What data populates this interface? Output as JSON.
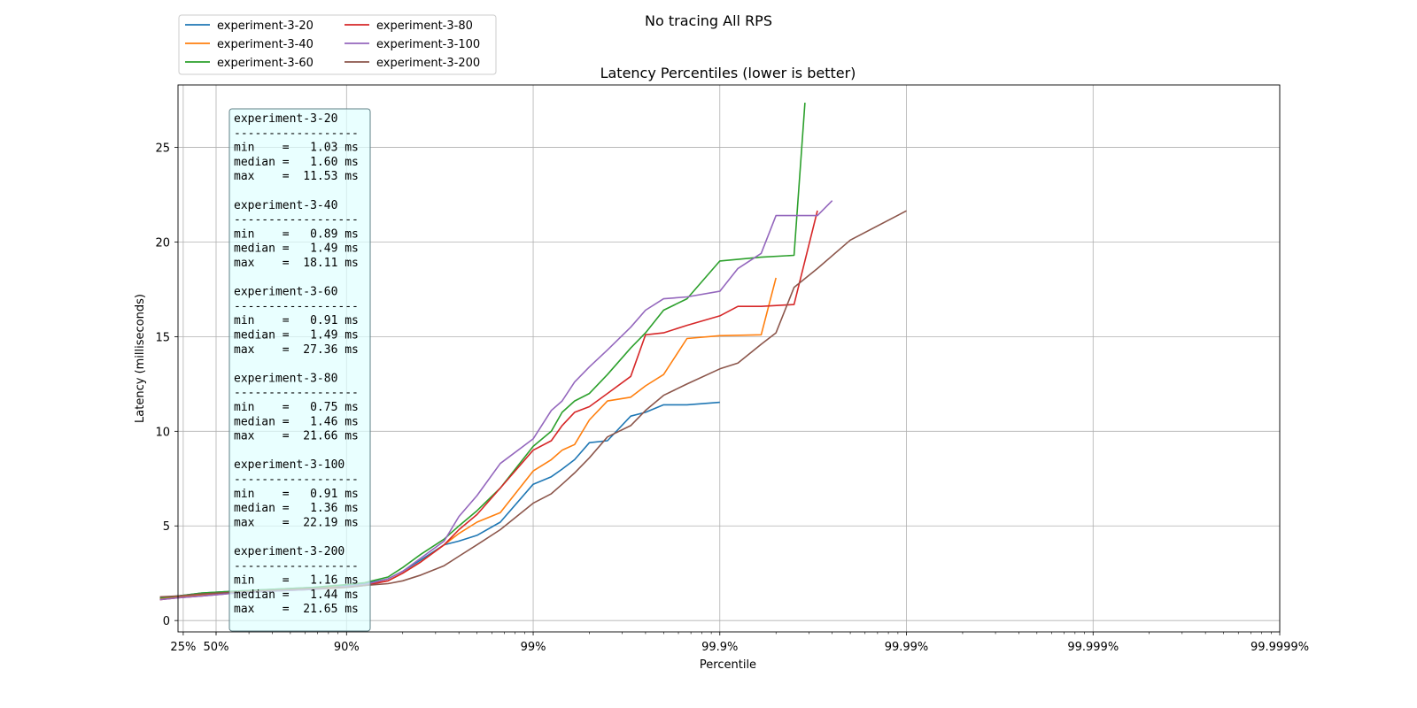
{
  "chart_data": {
    "type": "line",
    "suptitle": "No tracing All RPS",
    "title": "Latency Percentiles (lower is better)",
    "xlabel": "Percentile",
    "ylabel": "Latency (milliseconds)",
    "x_scale": "log of 1/(1 - percentile)",
    "xlim_percentile": [
      0,
      99.9999
    ],
    "ylim": [
      -0.6,
      28.3
    ],
    "x_ticks": [
      {
        "label": "25%",
        "value": 25
      },
      {
        "label": "50%",
        "value": 50
      },
      {
        "label": "90%",
        "value": 90
      },
      {
        "label": "99%",
        "value": 99
      },
      {
        "label": "99.9%",
        "value": 99.9
      },
      {
        "label": "99.99%",
        "value": 99.99
      },
      {
        "label": "99.999%",
        "value": 99.999
      },
      {
        "label": "99.9999%",
        "value": 99.9999
      }
    ],
    "y_ticks": [
      0,
      5,
      10,
      15,
      20,
      25
    ],
    "grid": true,
    "legend_position": "top-left, above plot",
    "series": [
      {
        "name": "experiment-3-20",
        "color": "#1f77b4",
        "points": [
          [
            0,
            1.2
          ],
          [
            20,
            1.3
          ],
          [
            40,
            1.45
          ],
          [
            60,
            1.55
          ],
          [
            75,
            1.65
          ],
          [
            85,
            1.75
          ],
          [
            90,
            1.85
          ],
          [
            92,
            1.95
          ],
          [
            94,
            2.2
          ],
          [
            95,
            2.6
          ],
          [
            96,
            3.2
          ],
          [
            97,
            4.0
          ],
          [
            97.5,
            4.2
          ],
          [
            98,
            4.5
          ],
          [
            98.5,
            5.2
          ],
          [
            99,
            7.2
          ],
          [
            99.2,
            7.6
          ],
          [
            99.3,
            8.0
          ],
          [
            99.4,
            8.5
          ],
          [
            99.5,
            9.4
          ],
          [
            99.6,
            9.5
          ],
          [
            99.7,
            10.8
          ],
          [
            99.75,
            11.0
          ],
          [
            99.8,
            11.4
          ],
          [
            99.85,
            11.4
          ],
          [
            99.9,
            11.53
          ]
        ],
        "stats": {
          "min": "1.03 ms",
          "median": "1.60 ms",
          "max": "11.53 ms"
        }
      },
      {
        "name": "experiment-3-40",
        "color": "#ff7f0e",
        "points": [
          [
            0,
            1.15
          ],
          [
            20,
            1.25
          ],
          [
            40,
            1.35
          ],
          [
            60,
            1.5
          ],
          [
            75,
            1.6
          ],
          [
            85,
            1.7
          ],
          [
            90,
            1.8
          ],
          [
            92,
            1.9
          ],
          [
            94,
            2.1
          ],
          [
            95,
            2.5
          ],
          [
            96,
            3.1
          ],
          [
            97,
            4.0
          ],
          [
            97.5,
            4.6
          ],
          [
            98,
            5.2
          ],
          [
            98.5,
            5.7
          ],
          [
            99,
            7.9
          ],
          [
            99.2,
            8.5
          ],
          [
            99.3,
            9.0
          ],
          [
            99.4,
            9.3
          ],
          [
            99.5,
            10.6
          ],
          [
            99.6,
            11.6
          ],
          [
            99.7,
            11.8
          ],
          [
            99.75,
            12.4
          ],
          [
            99.8,
            13.0
          ],
          [
            99.85,
            14.9
          ],
          [
            99.9,
            15.05
          ],
          [
            99.94,
            15.1
          ],
          [
            99.95,
            18.11
          ]
        ],
        "stats": {
          "min": "0.89 ms",
          "median": "1.49 ms",
          "max": "18.11 ms"
        }
      },
      {
        "name": "experiment-3-60",
        "color": "#2ca02c",
        "points": [
          [
            0,
            1.2
          ],
          [
            20,
            1.3
          ],
          [
            40,
            1.45
          ],
          [
            60,
            1.55
          ],
          [
            75,
            1.65
          ],
          [
            85,
            1.75
          ],
          [
            90,
            1.9
          ],
          [
            92,
            2.0
          ],
          [
            94,
            2.3
          ],
          [
            95,
            2.8
          ],
          [
            96,
            3.5
          ],
          [
            97,
            4.3
          ],
          [
            97.5,
            5.0
          ],
          [
            98,
            5.8
          ],
          [
            98.5,
            7.0
          ],
          [
            99,
            9.2
          ],
          [
            99.2,
            10.0
          ],
          [
            99.3,
            11.0
          ],
          [
            99.4,
            11.6
          ],
          [
            99.5,
            12.0
          ],
          [
            99.6,
            13.0
          ],
          [
            99.7,
            14.4
          ],
          [
            99.75,
            15.2
          ],
          [
            99.8,
            16.4
          ],
          [
            99.85,
            17.0
          ],
          [
            99.9,
            19.0
          ],
          [
            99.94,
            19.2
          ],
          [
            99.96,
            19.3
          ],
          [
            99.965,
            27.36
          ]
        ],
        "stats": {
          "min": "0.91 ms",
          "median": "1.49 ms",
          "max": "27.36 ms"
        }
      },
      {
        "name": "experiment-3-80",
        "color": "#d62728",
        "points": [
          [
            0,
            1.1
          ],
          [
            20,
            1.2
          ],
          [
            40,
            1.3
          ],
          [
            60,
            1.45
          ],
          [
            75,
            1.55
          ],
          [
            85,
            1.65
          ],
          [
            90,
            1.75
          ],
          [
            92,
            1.85
          ],
          [
            94,
            2.1
          ],
          [
            95,
            2.5
          ],
          [
            96,
            3.1
          ],
          [
            97,
            4.0
          ],
          [
            97.5,
            4.8
          ],
          [
            98,
            5.6
          ],
          [
            98.5,
            7.0
          ],
          [
            99,
            9.0
          ],
          [
            99.2,
            9.5
          ],
          [
            99.3,
            10.3
          ],
          [
            99.4,
            11.0
          ],
          [
            99.5,
            11.3
          ],
          [
            99.6,
            12.0
          ],
          [
            99.7,
            12.9
          ],
          [
            99.75,
            15.1
          ],
          [
            99.8,
            15.2
          ],
          [
            99.85,
            15.6
          ],
          [
            99.9,
            16.1
          ],
          [
            99.92,
            16.6
          ],
          [
            99.94,
            16.6
          ],
          [
            99.96,
            16.7
          ],
          [
            99.97,
            21.66
          ]
        ],
        "stats": {
          "min": "0.75 ms",
          "median": "1.46 ms",
          "max": "21.66 ms"
        }
      },
      {
        "name": "experiment-3-100",
        "color": "#9467bd",
        "points": [
          [
            0,
            1.1
          ],
          [
            20,
            1.2
          ],
          [
            40,
            1.3
          ],
          [
            60,
            1.45
          ],
          [
            75,
            1.55
          ],
          [
            85,
            1.65
          ],
          [
            90,
            1.8
          ],
          [
            92,
            1.9
          ],
          [
            94,
            2.2
          ],
          [
            95,
            2.6
          ],
          [
            96,
            3.3
          ],
          [
            97,
            4.2
          ],
          [
            97.5,
            5.5
          ],
          [
            98,
            6.6
          ],
          [
            98.5,
            8.3
          ],
          [
            99,
            9.6
          ],
          [
            99.2,
            11.1
          ],
          [
            99.3,
            11.6
          ],
          [
            99.4,
            12.6
          ],
          [
            99.5,
            13.4
          ],
          [
            99.6,
            14.3
          ],
          [
            99.7,
            15.5
          ],
          [
            99.75,
            16.4
          ],
          [
            99.8,
            17.0
          ],
          [
            99.85,
            17.1
          ],
          [
            99.9,
            17.4
          ],
          [
            99.92,
            18.6
          ],
          [
            99.94,
            19.4
          ],
          [
            99.95,
            21.4
          ],
          [
            99.97,
            21.4
          ],
          [
            99.975,
            22.19
          ]
        ],
        "stats": {
          "min": "0.91 ms",
          "median": "1.36 ms",
          "max": "22.19 ms"
        }
      },
      {
        "name": "experiment-3-200",
        "color": "#8c564b",
        "points": [
          [
            0,
            1.25
          ],
          [
            20,
            1.3
          ],
          [
            40,
            1.4
          ],
          [
            60,
            1.5
          ],
          [
            75,
            1.6
          ],
          [
            85,
            1.7
          ],
          [
            90,
            1.75
          ],
          [
            92,
            1.85
          ],
          [
            94,
            1.95
          ],
          [
            95,
            2.1
          ],
          [
            96,
            2.4
          ],
          [
            97,
            2.9
          ],
          [
            97.5,
            3.4
          ],
          [
            98,
            4.0
          ],
          [
            98.5,
            4.8
          ],
          [
            99,
            6.2
          ],
          [
            99.2,
            6.7
          ],
          [
            99.3,
            7.2
          ],
          [
            99.4,
            7.8
          ],
          [
            99.5,
            8.6
          ],
          [
            99.6,
            9.7
          ],
          [
            99.7,
            10.3
          ],
          [
            99.75,
            11.1
          ],
          [
            99.8,
            11.9
          ],
          [
            99.85,
            12.5
          ],
          [
            99.9,
            13.3
          ],
          [
            99.92,
            13.6
          ],
          [
            99.94,
            14.6
          ],
          [
            99.95,
            15.2
          ],
          [
            99.96,
            17.6
          ],
          [
            99.97,
            18.6
          ],
          [
            99.98,
            20.1
          ],
          [
            99.99,
            21.65
          ]
        ],
        "stats": {
          "min": "1.16 ms",
          "median": "1.44 ms",
          "max": "21.65 ms"
        }
      }
    ]
  }
}
